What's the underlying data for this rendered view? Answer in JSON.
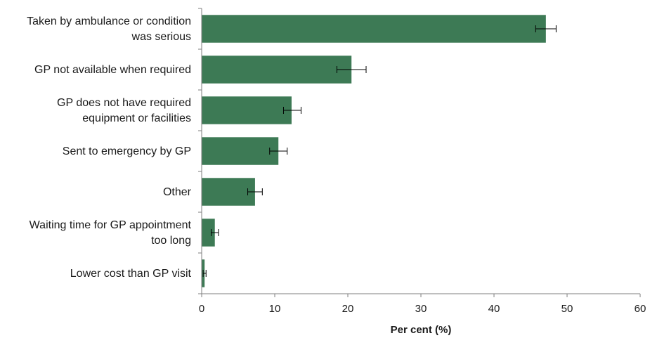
{
  "chart_data": {
    "type": "bar",
    "orientation": "horizontal",
    "categories": [
      [
        "Taken by ambulance or condition",
        "was serious"
      ],
      [
        "GP not available when required"
      ],
      [
        "GP does not have required",
        "equipment or facilities"
      ],
      [
        "Sent to emergency by GP"
      ],
      [
        "Other"
      ],
      [
        "Waiting time for GP appointment",
        "too long"
      ],
      [
        "Lower cost than GP visit"
      ]
    ],
    "values": [
      47.1,
      20.5,
      12.3,
      10.5,
      7.3,
      1.8,
      0.4
    ],
    "error_low": [
      45.7,
      18.5,
      11.2,
      9.3,
      6.3,
      1.3,
      0.2
    ],
    "error_high": [
      48.5,
      22.5,
      13.6,
      11.7,
      8.3,
      2.3,
      0.6
    ],
    "xlabel": "Per cent (%)",
    "ylabel": "",
    "xlim": [
      0,
      60
    ],
    "xticks": [
      "0",
      "10",
      "20",
      "30",
      "40",
      "50",
      "60"
    ],
    "bar_color": "#3d7a55",
    "grid": false,
    "legend": "none"
  }
}
